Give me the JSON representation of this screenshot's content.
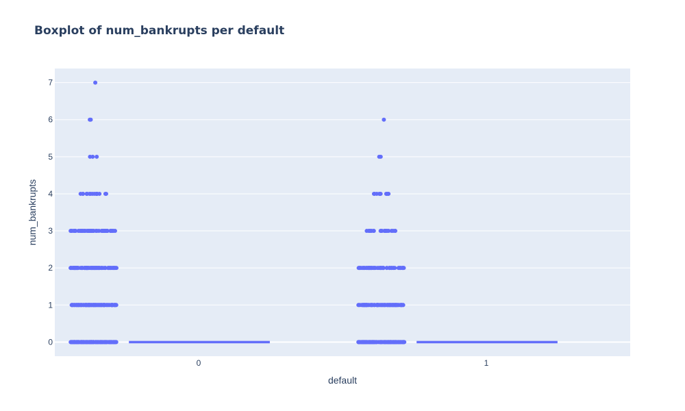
{
  "chart_data": {
    "type": "box",
    "title": "Boxplot of num_bankrupts per default",
    "xlabel": "default",
    "ylabel": "num_bankrupts",
    "categories": [
      "0",
      "1"
    ],
    "ylim": [
      -0.38,
      7.38
    ],
    "yticks": [
      0,
      1,
      2,
      3,
      4,
      5,
      6,
      7
    ],
    "grid": true,
    "colors": {
      "marker": "#636efa",
      "plot_bg": "#e5ecf6",
      "grid": "#ffffff",
      "text": "#2a3f5f"
    },
    "series": [
      {
        "category": "0",
        "box": {
          "min": 0,
          "q1": 0,
          "median": 0,
          "q3": 0,
          "max": 0
        },
        "points": [
          {
            "y": 0,
            "count": 160
          },
          {
            "y": 1,
            "count": 120
          },
          {
            "y": 2,
            "count": 100
          },
          {
            "y": 3,
            "count": 55
          },
          {
            "y": 4,
            "count": 18
          },
          {
            "y": 5,
            "count": 3
          },
          {
            "y": 6,
            "count": 2
          },
          {
            "y": 7,
            "count": 1
          }
        ]
      },
      {
        "category": "1",
        "box": {
          "min": 0,
          "q1": 0,
          "median": 0,
          "q3": 0,
          "max": 0
        },
        "points": [
          {
            "y": 0,
            "count": 140
          },
          {
            "y": 1,
            "count": 110
          },
          {
            "y": 2,
            "count": 65
          },
          {
            "y": 3,
            "count": 22
          },
          {
            "y": 4,
            "count": 10
          },
          {
            "y": 5,
            "count": 2
          },
          {
            "y": 6,
            "count": 1
          }
        ]
      }
    ]
  }
}
